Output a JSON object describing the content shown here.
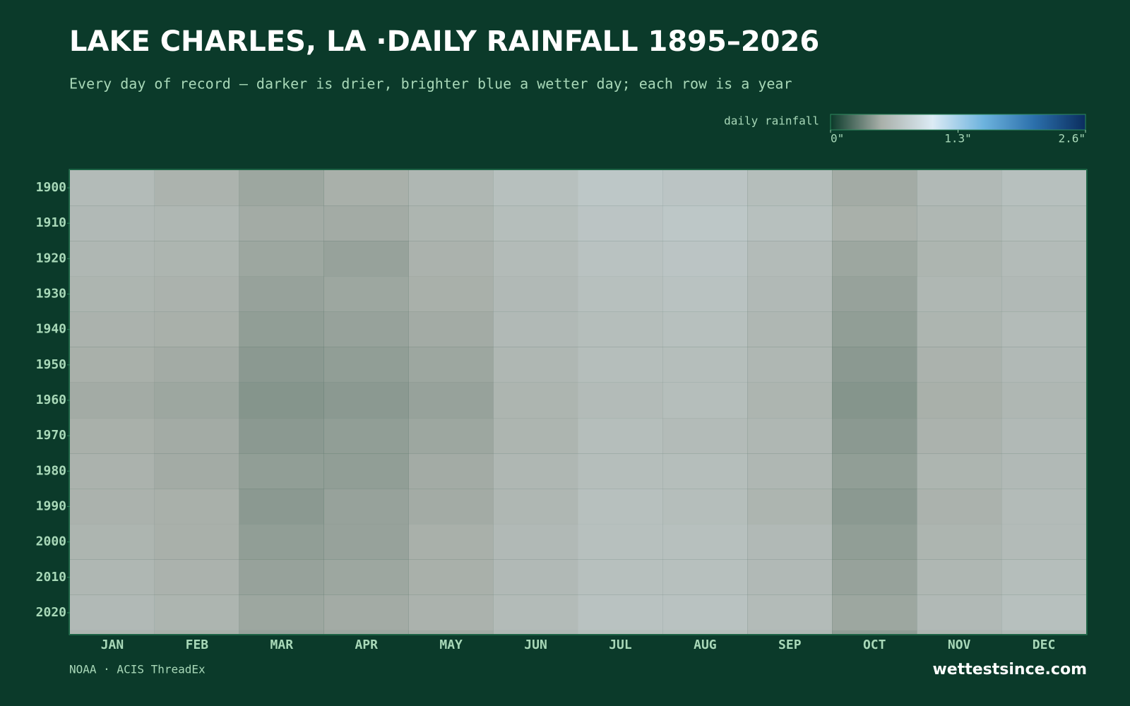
{
  "chart_data": {
    "type": "heatmap",
    "title": "LAKE CHARLES, LA ·DAILY RAINFALL 1895–2026",
    "subtitle": "Every day of record — darker is drier, brighter blue a wetter day; each row is a year",
    "colorbar_label": "daily rainfall",
    "clim": [
      0,
      2.6
    ],
    "cticks": [
      {
        "value": 0,
        "label": "0\""
      },
      {
        "value": 1.3,
        "label": "1.3\""
      },
      {
        "value": 2.6,
        "label": "2.6\""
      }
    ],
    "colors": [
      "#0b3a2a",
      "#a9b0aa",
      "#dcebf5",
      "#6db3de",
      "#2b6fab",
      "#0b2d5e"
    ],
    "categories": [
      "JAN",
      "FEB",
      "MAR",
      "APR",
      "MAY",
      "JUN",
      "JUL",
      "AUG",
      "SEP",
      "OCT",
      "NOV",
      "DEC"
    ],
    "y_bins": [
      1895,
      1905,
      1915,
      1925,
      1935,
      1945,
      1955,
      1965,
      1975,
      1985,
      1995,
      2005,
      2015,
      2025,
      2026
    ],
    "ylim": [
      1895,
      2026
    ],
    "yticks": [
      1900,
      1910,
      1920,
      1930,
      1940,
      1950,
      1960,
      1970,
      1980,
      1990,
      2000,
      2010,
      2020
    ],
    "values": [
      [
        0.62,
        0.55,
        0.48,
        0.52,
        0.58,
        0.66,
        0.72,
        0.7,
        0.64,
        0.5,
        0.6,
        0.66
      ],
      [
        0.6,
        0.58,
        0.5,
        0.5,
        0.56,
        0.64,
        0.7,
        0.72,
        0.66,
        0.52,
        0.58,
        0.64
      ],
      [
        0.58,
        0.56,
        0.48,
        0.46,
        0.54,
        0.62,
        0.68,
        0.7,
        0.62,
        0.48,
        0.56,
        0.62
      ],
      [
        0.56,
        0.54,
        0.46,
        0.48,
        0.52,
        0.6,
        0.66,
        0.68,
        0.6,
        0.46,
        0.58,
        0.6
      ],
      [
        0.54,
        0.52,
        0.44,
        0.46,
        0.5,
        0.6,
        0.64,
        0.66,
        0.58,
        0.44,
        0.56,
        0.62
      ],
      [
        0.52,
        0.5,
        0.42,
        0.44,
        0.48,
        0.58,
        0.64,
        0.64,
        0.58,
        0.42,
        0.54,
        0.6
      ],
      [
        0.5,
        0.48,
        0.4,
        0.42,
        0.46,
        0.56,
        0.62,
        0.64,
        0.56,
        0.4,
        0.52,
        0.58
      ],
      [
        0.52,
        0.5,
        0.42,
        0.44,
        0.48,
        0.56,
        0.64,
        0.62,
        0.58,
        0.42,
        0.54,
        0.6
      ],
      [
        0.54,
        0.5,
        0.44,
        0.44,
        0.5,
        0.58,
        0.64,
        0.64,
        0.58,
        0.44,
        0.56,
        0.6
      ],
      [
        0.54,
        0.52,
        0.42,
        0.46,
        0.5,
        0.58,
        0.66,
        0.64,
        0.56,
        0.42,
        0.54,
        0.62
      ],
      [
        0.56,
        0.52,
        0.44,
        0.46,
        0.52,
        0.6,
        0.66,
        0.66,
        0.6,
        0.44,
        0.56,
        0.62
      ],
      [
        0.58,
        0.54,
        0.46,
        0.48,
        0.52,
        0.6,
        0.66,
        0.66,
        0.6,
        0.46,
        0.58,
        0.64
      ],
      [
        0.6,
        0.56,
        0.48,
        0.5,
        0.54,
        0.62,
        0.68,
        0.68,
        0.62,
        0.48,
        0.6,
        0.66
      ],
      [
        0.56,
        0.52,
        0.46,
        0.48,
        0.5,
        0.58,
        0.64,
        0.64,
        0.58,
        0.44,
        0.56,
        0.6
      ]
    ],
    "source": "NOAA · ACIS ThreadEx",
    "brand": "wettestsince.com"
  }
}
